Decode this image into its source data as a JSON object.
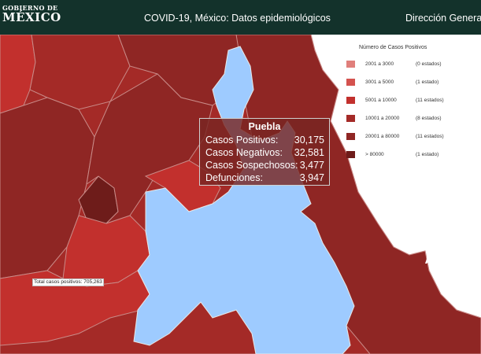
{
  "header": {
    "logo_line1": "GOBIERNO DE",
    "logo_line2": "MÉXICO",
    "title": "COVID-19, México: Datos epidemiológicos",
    "right_text": "Dirección General d"
  },
  "tooltip": {
    "state": "Puebla",
    "rows": [
      {
        "label": "Casos Positivos:",
        "value": "30,175"
      },
      {
        "label": "Casos Negativos:",
        "value": "32,581"
      },
      {
        "label": "Casos Sospechosos:",
        "value": "3,477"
      },
      {
        "label": "Defunciones:",
        "value": "3,947"
      }
    ]
  },
  "legend": {
    "title": "Número de Casos Positivos",
    "items": [
      {
        "range": "2001 a    3000",
        "count": "(0 estados)",
        "color": "#e07f7b"
      },
      {
        "range": "3001 a    5000",
        "count": "(1 estado)",
        "color": "#d4524e"
      },
      {
        "range": "5001 a  10000",
        "count": "(11 estados)",
        "color": "#c2302d"
      },
      {
        "range": "10001 a  20000",
        "count": "(8 estados)",
        "color": "#a42a27"
      },
      {
        "range": "20001 a  80000",
        "count": "(11 estados)",
        "color": "#8f2624"
      },
      {
        "range": "> 80000",
        "count": "(1 estado)",
        "color": "#6e1c1a"
      }
    ]
  },
  "map": {
    "total_label": "Total casos positivos: 705,263",
    "highlight_color": "#9ecbff"
  }
}
